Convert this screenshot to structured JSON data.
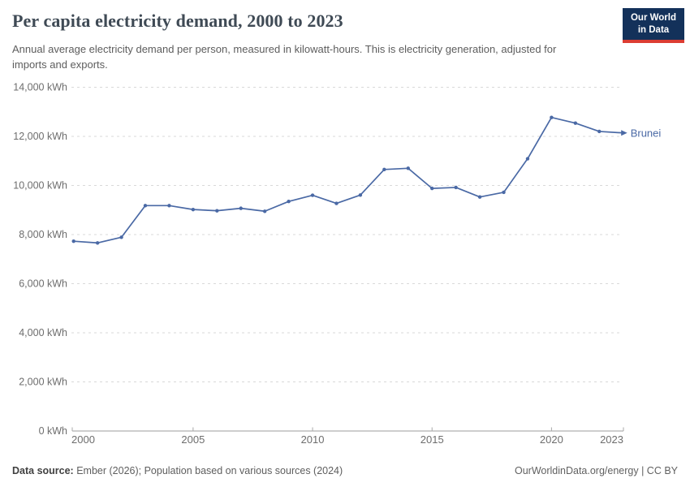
{
  "header": {
    "title": "Per capita electricity demand, 2000 to 2023",
    "subtitle": "Annual average electricity demand per person, measured in kilowatt-hours. This is electricity generation, adjusted for imports and exports.",
    "logo": {
      "line1": "Our World",
      "line2": "in Data"
    }
  },
  "chart_data": {
    "type": "line",
    "title": "Per capita electricity demand, 2000 to 2023",
    "xlabel": "",
    "ylabel": "",
    "y_unit": "kWh",
    "xlim": [
      2000,
      2023
    ],
    "ylim": [
      0,
      14000
    ],
    "grid": "horizontal-dashed",
    "legend_position": "end-of-line-label",
    "x": [
      2000,
      2001,
      2002,
      2003,
      2004,
      2005,
      2006,
      2007,
      2008,
      2009,
      2010,
      2011,
      2012,
      2013,
      2014,
      2015,
      2016,
      2017,
      2018,
      2019,
      2020,
      2021,
      2022,
      2023
    ],
    "series": [
      {
        "name": "Brunei",
        "values": [
          7730,
          7660,
          7890,
          9180,
          9180,
          9020,
          8970,
          9070,
          8950,
          9350,
          9600,
          9270,
          9610,
          10650,
          10700,
          9880,
          9920,
          9530,
          9720,
          11090,
          12770,
          12540,
          12200,
          12140
        ]
      }
    ],
    "x_ticks": [
      "2000",
      "2005",
      "2010",
      "2015",
      "2020",
      "2023"
    ],
    "x_tick_years": [
      2000,
      2005,
      2010,
      2015,
      2020,
      2023
    ],
    "y_ticks": [
      {
        "value": 0,
        "label": "0 kWh"
      },
      {
        "value": 2000,
        "label": "2,000 kWh"
      },
      {
        "value": 4000,
        "label": "4,000 kWh"
      },
      {
        "value": 6000,
        "label": "6,000 kWh"
      },
      {
        "value": 8000,
        "label": "8,000 kWh"
      },
      {
        "value": 10000,
        "label": "10,000 kWh"
      },
      {
        "value": 12000,
        "label": "12,000 kWh"
      },
      {
        "value": 14000,
        "label": "14,000 kWh"
      }
    ],
    "end_label": "Brunei"
  },
  "colors": {
    "line": "#4a69a5",
    "grid": "#d9d9d9",
    "axis": "#9e9e9e",
    "tick_stub": "#a8a8a8",
    "tick_text": "#6d6d6d",
    "title": "#3f4a55",
    "subtitle": "#5d5d5d",
    "logo_bg": "#13315a",
    "logo_red": "#dc3d33"
  },
  "footer": {
    "source_label": "Data source:",
    "source_value": " Ember (2026); Population based on various sources (2024)",
    "rights": "OurWorldinData.org/energy | CC BY"
  }
}
